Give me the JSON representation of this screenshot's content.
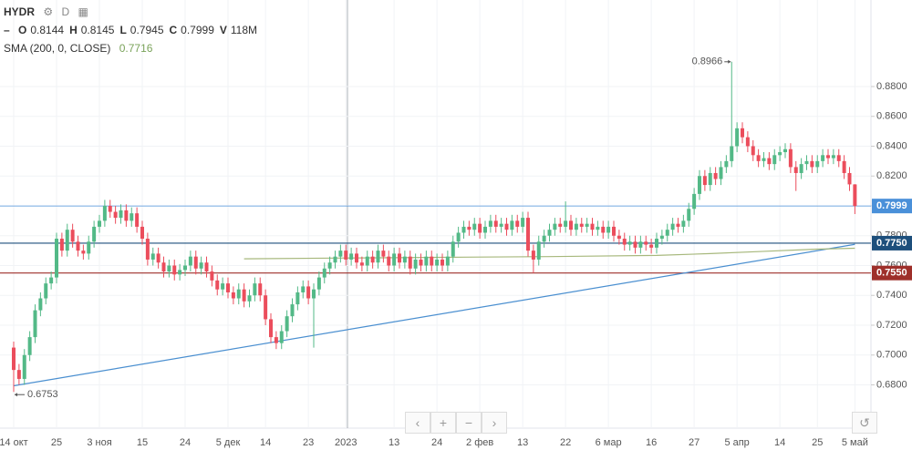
{
  "header": {
    "symbol": "HYDR",
    "interval": "D",
    "ohlc": [
      {
        "key": "O",
        "value": 0.8144
      },
      {
        "key": "H",
        "value": 0.8145
      },
      {
        "key": "L",
        "value": 0.7945
      },
      {
        "key": "C",
        "value": 0.7999
      }
    ],
    "volume_key": "V",
    "volume": "118M",
    "indicator": "SMA (200, 0, CLOSE)",
    "indicator_value": 0.7716
  },
  "chart_data": {
    "type": "candlestick",
    "up_color": "#53b987",
    "down_color": "#eb4d5c",
    "categories": [
      "14 окт",
      null,
      null,
      null,
      null,
      null,
      null,
      null,
      "25",
      null,
      null,
      null,
      null,
      null,
      null,
      null,
      "3 ноя",
      null,
      null,
      null,
      null,
      null,
      null,
      null,
      "15",
      null,
      null,
      null,
      null,
      null,
      null,
      null,
      "24",
      null,
      null,
      null,
      null,
      null,
      null,
      null,
      "5 дек",
      null,
      null,
      null,
      null,
      null,
      null,
      "14",
      null,
      null,
      null,
      null,
      null,
      null,
      null,
      "23",
      null,
      null,
      null,
      null,
      null,
      null,
      "2023",
      null,
      null,
      null,
      null,
      null,
      null,
      null,
      null,
      "13",
      null,
      null,
      null,
      null,
      null,
      null,
      null,
      "24",
      null,
      null,
      null,
      null,
      null,
      null,
      null,
      "2 фев",
      null,
      null,
      null,
      null,
      null,
      null,
      null,
      "13",
      null,
      null,
      null,
      null,
      null,
      null,
      null,
      "22",
      null,
      null,
      null,
      null,
      null,
      null,
      null,
      "6 мар",
      null,
      null,
      null,
      null,
      null,
      null,
      null,
      "16",
      null,
      null,
      null,
      null,
      null,
      null,
      null,
      "27",
      null,
      null,
      null,
      null,
      null,
      null,
      null,
      "5 апр",
      null,
      null,
      null,
      null,
      null,
      null,
      null,
      "14",
      null,
      null,
      null,
      null,
      null,
      null,
      "25",
      null,
      null,
      null,
      null,
      null,
      null,
      "5 май"
    ],
    "candles": [
      [
        0.705,
        0.709,
        0.6753,
        0.69
      ],
      [
        0.69,
        0.694,
        0.68,
        0.684
      ],
      [
        0.684,
        0.704,
        0.68,
        0.7
      ],
      [
        0.7,
        0.716,
        0.696,
        0.712
      ],
      [
        0.712,
        0.734,
        0.708,
        0.73
      ],
      [
        0.73,
        0.742,
        0.726,
        0.738
      ],
      [
        0.738,
        0.752,
        0.734,
        0.748
      ],
      [
        0.748,
        0.756,
        0.744,
        0.752
      ],
      [
        0.752,
        0.782,
        0.748,
        0.778
      ],
      [
        0.778,
        0.782,
        0.766,
        0.77
      ],
      [
        0.77,
        0.788,
        0.766,
        0.784
      ],
      [
        0.784,
        0.788,
        0.772,
        0.776
      ],
      [
        0.776,
        0.78,
        0.766,
        0.77
      ],
      [
        0.77,
        0.774,
        0.764,
        0.768
      ],
      [
        0.768,
        0.78,
        0.764,
        0.776
      ],
      [
        0.776,
        0.79,
        0.772,
        0.786
      ],
      [
        0.786,
        0.794,
        0.782,
        0.79
      ],
      [
        0.79,
        0.804,
        0.786,
        0.8
      ],
      [
        0.8,
        0.804,
        0.792,
        0.796
      ],
      [
        0.796,
        0.8,
        0.788,
        0.792
      ],
      [
        0.792,
        0.801,
        0.788,
        0.797
      ],
      [
        0.797,
        0.801,
        0.786,
        0.79
      ],
      [
        0.79,
        0.799,
        0.786,
        0.795
      ],
      [
        0.795,
        0.799,
        0.782,
        0.786
      ],
      [
        0.786,
        0.79,
        0.774,
        0.778
      ],
      [
        0.778,
        0.782,
        0.76,
        0.764
      ],
      [
        0.764,
        0.772,
        0.76,
        0.768
      ],
      [
        0.768,
        0.772,
        0.758,
        0.762
      ],
      [
        0.762,
        0.766,
        0.752,
        0.756
      ],
      [
        0.756,
        0.764,
        0.752,
        0.76
      ],
      [
        0.76,
        0.764,
        0.75,
        0.754
      ],
      [
        0.754,
        0.761,
        0.75,
        0.757
      ],
      [
        0.757,
        0.764,
        0.753,
        0.76
      ],
      [
        0.76,
        0.77,
        0.756,
        0.766
      ],
      [
        0.766,
        0.77,
        0.754,
        0.758
      ],
      [
        0.758,
        0.766,
        0.754,
        0.762
      ],
      [
        0.762,
        0.766,
        0.752,
        0.756
      ],
      [
        0.756,
        0.76,
        0.746,
        0.75
      ],
      [
        0.75,
        0.754,
        0.74,
        0.744
      ],
      [
        0.744,
        0.752,
        0.74,
        0.748
      ],
      [
        0.748,
        0.752,
        0.738,
        0.742
      ],
      [
        0.742,
        0.746,
        0.734,
        0.738
      ],
      [
        0.738,
        0.748,
        0.734,
        0.744
      ],
      [
        0.744,
        0.748,
        0.732,
        0.736
      ],
      [
        0.736,
        0.744,
        0.732,
        0.74
      ],
      [
        0.74,
        0.752,
        0.736,
        0.748
      ],
      [
        0.748,
        0.752,
        0.736,
        0.74
      ],
      [
        0.74,
        0.744,
        0.72,
        0.724
      ],
      [
        0.724,
        0.728,
        0.708,
        0.712
      ],
      [
        0.712,
        0.716,
        0.704,
        0.708
      ],
      [
        0.708,
        0.72,
        0.704,
        0.716
      ],
      [
        0.716,
        0.73,
        0.712,
        0.726
      ],
      [
        0.726,
        0.738,
        0.722,
        0.734
      ],
      [
        0.734,
        0.746,
        0.73,
        0.742
      ],
      [
        0.742,
        0.75,
        0.738,
        0.746
      ],
      [
        0.746,
        0.75,
        0.734,
        0.738
      ],
      [
        0.738,
        0.748,
        0.705,
        0.744
      ],
      [
        0.744,
        0.756,
        0.74,
        0.752
      ],
      [
        0.752,
        0.762,
        0.748,
        0.758
      ],
      [
        0.758,
        0.766,
        0.754,
        0.762
      ],
      [
        0.762,
        0.77,
        0.758,
        0.766
      ],
      [
        0.766,
        0.774,
        0.762,
        0.77
      ],
      [
        0.77,
        0.774,
        0.76,
        0.764
      ],
      [
        0.764,
        0.772,
        0.76,
        0.768
      ],
      [
        0.768,
        0.772,
        0.758,
        0.762
      ],
      [
        0.762,
        0.766,
        0.756,
        0.76
      ],
      [
        0.76,
        0.77,
        0.756,
        0.766
      ],
      [
        0.766,
        0.77,
        0.758,
        0.762
      ],
      [
        0.762,
        0.774,
        0.758,
        0.77
      ],
      [
        0.77,
        0.774,
        0.762,
        0.766
      ],
      [
        0.766,
        0.77,
        0.756,
        0.76
      ],
      [
        0.76,
        0.772,
        0.756,
        0.768
      ],
      [
        0.768,
        0.772,
        0.758,
        0.762
      ],
      [
        0.762,
        0.77,
        0.758,
        0.766
      ],
      [
        0.766,
        0.77,
        0.754,
        0.758
      ],
      [
        0.758,
        0.768,
        0.754,
        0.764
      ],
      [
        0.764,
        0.768,
        0.756,
        0.76
      ],
      [
        0.76,
        0.77,
        0.756,
        0.766
      ],
      [
        0.766,
        0.77,
        0.756,
        0.76
      ],
      [
        0.76,
        0.768,
        0.756,
        0.764
      ],
      [
        0.764,
        0.768,
        0.756,
        0.76
      ],
      [
        0.76,
        0.77,
        0.756,
        0.766
      ],
      [
        0.766,
        0.78,
        0.762,
        0.776
      ],
      [
        0.776,
        0.786,
        0.772,
        0.782
      ],
      [
        0.782,
        0.79,
        0.778,
        0.786
      ],
      [
        0.786,
        0.79,
        0.78,
        0.784
      ],
      [
        0.784,
        0.792,
        0.78,
        0.788
      ],
      [
        0.788,
        0.792,
        0.778,
        0.782
      ],
      [
        0.782,
        0.79,
        0.778,
        0.786
      ],
      [
        0.786,
        0.794,
        0.782,
        0.79
      ],
      [
        0.79,
        0.794,
        0.782,
        0.786
      ],
      [
        0.786,
        0.792,
        0.782,
        0.788
      ],
      [
        0.788,
        0.792,
        0.78,
        0.784
      ],
      [
        0.784,
        0.794,
        0.78,
        0.79
      ],
      [
        0.79,
        0.794,
        0.782,
        0.786
      ],
      [
        0.786,
        0.796,
        0.782,
        0.792
      ],
      [
        0.792,
        0.796,
        0.766,
        0.77
      ],
      [
        0.77,
        0.774,
        0.755,
        0.764
      ],
      [
        0.764,
        0.78,
        0.76,
        0.776
      ],
      [
        0.776,
        0.784,
        0.772,
        0.78
      ],
      [
        0.78,
        0.788,
        0.776,
        0.784
      ],
      [
        0.784,
        0.792,
        0.78,
        0.788
      ],
      [
        0.788,
        0.792,
        0.782,
        0.786
      ],
      [
        0.786,
        0.803,
        0.782,
        0.79
      ],
      [
        0.79,
        0.794,
        0.78,
        0.784
      ],
      [
        0.784,
        0.792,
        0.78,
        0.788
      ],
      [
        0.788,
        0.792,
        0.782,
        0.786
      ],
      [
        0.786,
        0.792,
        0.782,
        0.788
      ],
      [
        0.788,
        0.792,
        0.78,
        0.784
      ],
      [
        0.784,
        0.79,
        0.78,
        0.786
      ],
      [
        0.786,
        0.79,
        0.778,
        0.782
      ],
      [
        0.782,
        0.79,
        0.778,
        0.786
      ],
      [
        0.786,
        0.79,
        0.776,
        0.78
      ],
      [
        0.78,
        0.784,
        0.774,
        0.778
      ],
      [
        0.778,
        0.782,
        0.77,
        0.774
      ],
      [
        0.774,
        0.78,
        0.77,
        0.776
      ],
      [
        0.776,
        0.78,
        0.768,
        0.772
      ],
      [
        0.772,
        0.78,
        0.768,
        0.776
      ],
      [
        0.776,
        0.78,
        0.77,
        0.774
      ],
      [
        0.774,
        0.778,
        0.768,
        0.772
      ],
      [
        0.772,
        0.782,
        0.768,
        0.778
      ],
      [
        0.778,
        0.784,
        0.774,
        0.78
      ],
      [
        0.78,
        0.788,
        0.776,
        0.784
      ],
      [
        0.784,
        0.792,
        0.78,
        0.788
      ],
      [
        0.788,
        0.792,
        0.782,
        0.786
      ],
      [
        0.786,
        0.794,
        0.782,
        0.79
      ],
      [
        0.79,
        0.802,
        0.786,
        0.798
      ],
      [
        0.798,
        0.812,
        0.794,
        0.808
      ],
      [
        0.808,
        0.824,
        0.804,
        0.82
      ],
      [
        0.82,
        0.824,
        0.81,
        0.814
      ],
      [
        0.814,
        0.826,
        0.81,
        0.822
      ],
      [
        0.822,
        0.826,
        0.814,
        0.818
      ],
      [
        0.818,
        0.83,
        0.814,
        0.826
      ],
      [
        0.826,
        0.834,
        0.822,
        0.83
      ],
      [
        0.83,
        0.8966,
        0.826,
        0.84
      ],
      [
        0.84,
        0.856,
        0.836,
        0.852
      ],
      [
        0.852,
        0.856,
        0.842,
        0.846
      ],
      [
        0.846,
        0.85,
        0.836,
        0.84
      ],
      [
        0.84,
        0.844,
        0.83,
        0.834
      ],
      [
        0.834,
        0.838,
        0.826,
        0.83
      ],
      [
        0.83,
        0.836,
        0.826,
        0.832
      ],
      [
        0.832,
        0.836,
        0.824,
        0.828
      ],
      [
        0.828,
        0.838,
        0.824,
        0.834
      ],
      [
        0.834,
        0.84,
        0.83,
        0.836
      ],
      [
        0.836,
        0.842,
        0.832,
        0.838
      ],
      [
        0.838,
        0.842,
        0.822,
        0.826
      ],
      [
        0.826,
        0.83,
        0.81,
        0.822
      ],
      [
        0.822,
        0.832,
        0.818,
        0.828
      ],
      [
        0.828,
        0.834,
        0.824,
        0.83
      ],
      [
        0.83,
        0.834,
        0.822,
        0.826
      ],
      [
        0.826,
        0.834,
        0.822,
        0.83
      ],
      [
        0.83,
        0.838,
        0.826,
        0.834
      ],
      [
        0.834,
        0.838,
        0.828,
        0.832
      ],
      [
        0.832,
        0.838,
        0.828,
        0.834
      ],
      [
        0.834,
        0.838,
        0.826,
        0.83
      ],
      [
        0.83,
        0.834,
        0.818,
        0.822
      ],
      [
        0.822,
        0.826,
        0.81,
        0.8144
      ],
      [
        0.8144,
        0.8145,
        0.7945,
        0.7999
      ]
    ],
    "sma": {
      "color": "#a7b87c",
      "x": [
        43,
        60,
        80,
        100,
        120,
        130,
        140,
        150,
        157
      ],
      "values": [
        0.7645,
        0.765,
        0.7655,
        0.766,
        0.7668,
        0.768,
        0.7695,
        0.771,
        0.7716
      ]
    },
    "trendline": {
      "color": "#4a8fd0",
      "x": [
        0,
        157
      ],
      "values": [
        0.6794,
        0.7742
      ]
    },
    "price_lines": [
      {
        "value": 0.7999,
        "label": "0.7999",
        "color": "#4a90d9"
      },
      {
        "value": 0.775,
        "label": "0.7750",
        "color": "#1d4f7c"
      },
      {
        "value": 0.755,
        "label": "0.7550",
        "color": "#9e2f2a"
      }
    ],
    "annotations": [
      {
        "index": 134,
        "value": 0.8966,
        "label": "0.8966",
        "side": "left"
      },
      {
        "index": 0,
        "value": 0.6753,
        "label": "0.6753",
        "side": "right"
      }
    ],
    "ylim": [
      0.651,
      0.938
    ],
    "yticks": [
      {
        "value": 0.68,
        "label": "0.6800"
      },
      {
        "value": 0.7,
        "label": "0.7000"
      },
      {
        "value": 0.72,
        "label": "0.7200"
      },
      {
        "value": 0.74,
        "label": "0.7400"
      },
      {
        "value": 0.76,
        "label": "0.7600"
      },
      {
        "value": 0.78,
        "label": "0.7800"
      },
      {
        "value": 0.8,
        "label": "0.8000"
      },
      {
        "value": 0.82,
        "label": "0.8200"
      },
      {
        "value": 0.84,
        "label": "0.8400"
      },
      {
        "value": 0.86,
        "label": "0.8600"
      },
      {
        "value": 0.88,
        "label": "0.8800"
      }
    ],
    "grid": true
  }
}
